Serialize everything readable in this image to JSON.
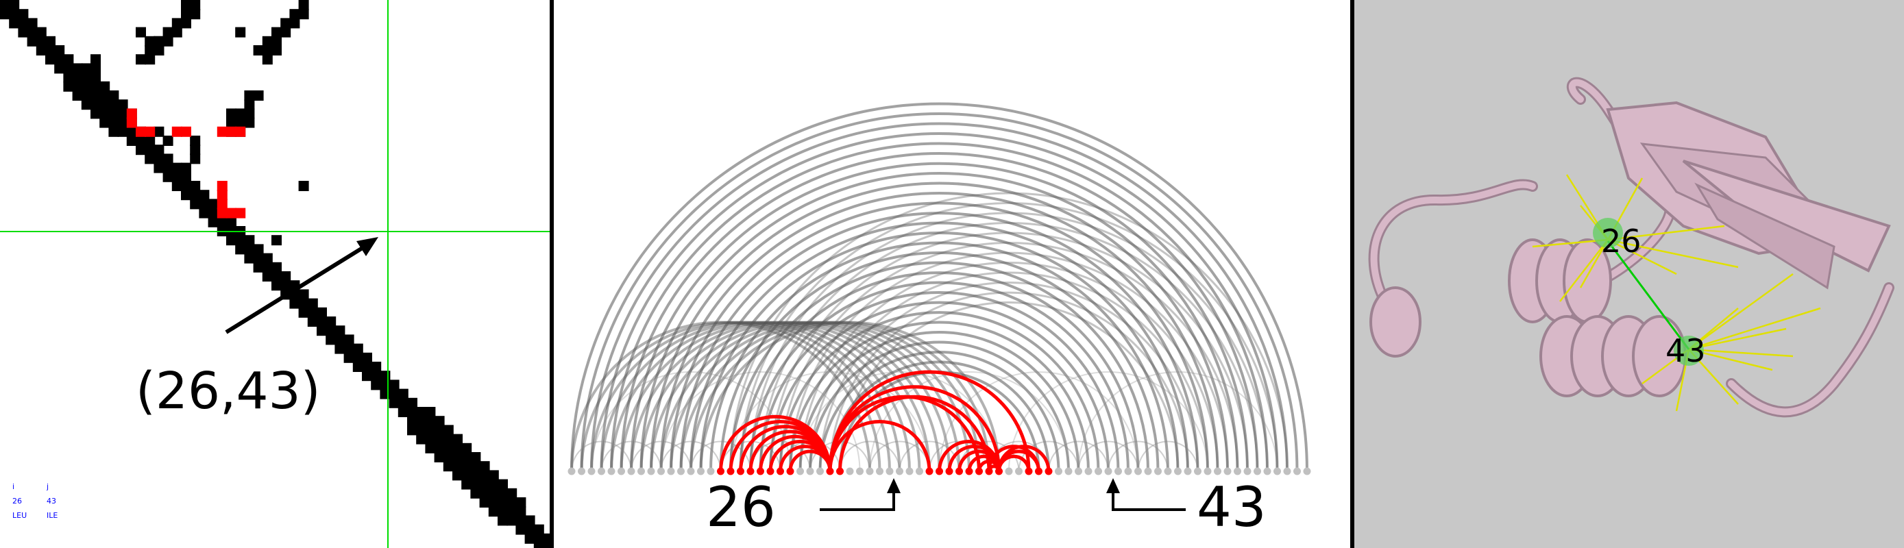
{
  "contact_map": {
    "highlight_label": "(26,43)",
    "info": {
      "col_i": "i",
      "col_j": "j",
      "i_value": "26",
      "j_value": "43",
      "i_residue": "LEU",
      "j_residue": "ILE"
    },
    "colors": {
      "contact": "#000000",
      "selected": "#ff0000",
      "crosshair": "#00dd00"
    }
  },
  "arc_diagram": {
    "left_label": "26",
    "right_label": "43",
    "colors": {
      "arc": "#555555",
      "highlight": "#ff0000",
      "node": "#c0c0c0"
    }
  },
  "structure_view": {
    "label_a": "26",
    "label_b": "43",
    "colors": {
      "ribbon": "#d8b8c8",
      "contact_line": "#e0e000",
      "selected_line": "#00cc00",
      "background": "#c8c8c8"
    }
  }
}
